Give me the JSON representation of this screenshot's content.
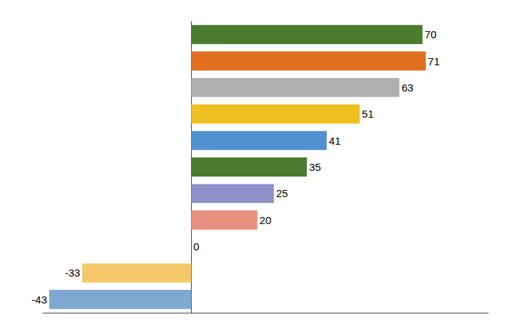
{
  "chart_data": {
    "type": "bar",
    "orientation": "horizontal",
    "values": [
      70,
      71,
      63,
      51,
      41,
      35,
      25,
      20,
      0,
      -33,
      -43
    ],
    "colors": [
      "#4a7c2f",
      "#e07020",
      "#b0b0b0",
      "#f0c020",
      "#5090d0",
      "#4a7c2f",
      "#9090c8",
      "#e89080",
      null,
      "#f5c96a",
      "#7da8d0"
    ],
    "xlim": [
      -45,
      90
    ],
    "data_labels": true,
    "tick_labels": false,
    "grid": false
  }
}
